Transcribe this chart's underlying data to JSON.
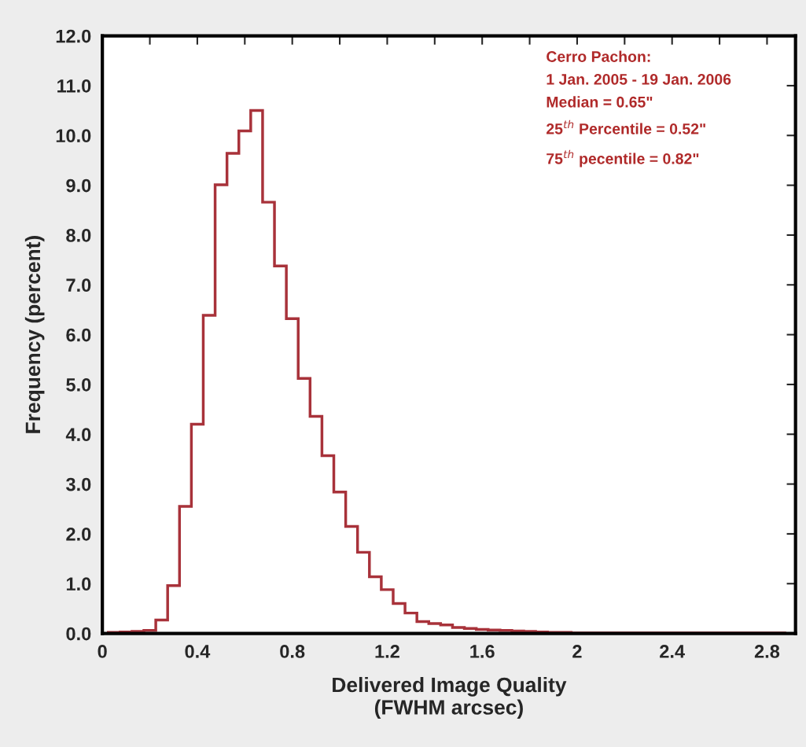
{
  "chart_data": {
    "type": "histogram",
    "xlabel": "Delivered Image Quality\n(FWHM arcsec)",
    "ylabel": "Frequency (percent)",
    "bins": [
      0.025,
      0.075,
      0.125,
      0.175,
      0.225,
      0.275,
      0.325,
      0.375,
      0.425,
      0.475,
      0.525,
      0.575,
      0.625,
      0.675,
      0.725,
      0.775,
      0.825,
      0.875,
      0.925,
      0.975,
      1.025,
      1.075,
      1.125,
      1.175,
      1.225,
      1.275,
      1.325,
      1.375,
      1.425,
      1.475,
      1.525,
      1.575,
      1.625,
      1.675,
      1.725,
      1.775,
      1.825,
      1.875,
      1.925,
      1.975,
      2.025,
      2.075,
      2.125,
      2.175,
      2.225,
      2.275,
      2.325,
      2.375,
      2.425,
      2.475,
      2.525,
      2.575,
      2.625,
      2.675,
      2.725,
      2.775,
      2.825,
      2.875
    ],
    "values": [
      0.02,
      0.03,
      0.04,
      0.06,
      0.27,
      0.96,
      2.55,
      4.2,
      6.39,
      9.01,
      9.64,
      10.09,
      10.5,
      8.66,
      7.38,
      6.32,
      5.12,
      4.36,
      3.57,
      2.84,
      2.15,
      1.63,
      1.14,
      0.88,
      0.6,
      0.41,
      0.24,
      0.2,
      0.17,
      0.12,
      0.1,
      0.08,
      0.07,
      0.06,
      0.05,
      0.04,
      0.03,
      0.02,
      0.02,
      0.01,
      0.01,
      0.01,
      0.01,
      0.01,
      0.01,
      0.01,
      0.01,
      0.01,
      0.01,
      0.01,
      0.01,
      0.01,
      0.01,
      0.01,
      0.01,
      0.01,
      0.01
    ],
    "color": "#a8323a",
    "xlim": [
      0,
      2.92
    ],
    "ylim": [
      0,
      12
    ],
    "xticks": [
      0,
      {
        "value": 0.2,
        "label": null
      },
      0.4,
      {
        "value": 0.6,
        "label": null
      },
      0.8,
      {
        "value": 1.0,
        "label": null
      },
      1.2,
      {
        "value": 1.4,
        "label": null
      },
      1.6,
      {
        "value": 1.8,
        "label": null
      },
      {
        "value": 2,
        "label": "2"
      },
      {
        "value": 2.2,
        "label": null
      },
      2.4,
      {
        "value": 2.6,
        "label": null
      },
      2.8
    ],
    "yticks": [
      {
        "value": 0,
        "label": "0.0"
      },
      {
        "value": 1,
        "label": "1.0"
      },
      {
        "value": 2,
        "label": "2.0"
      },
      {
        "value": 3,
        "label": "3.0"
      },
      {
        "value": 4,
        "label": "4.0"
      },
      {
        "value": 5,
        "label": "5.0"
      },
      {
        "value": 6,
        "label": "6.0"
      },
      {
        "value": 7,
        "label": "7.0"
      },
      {
        "value": 8,
        "label": "8.0"
      },
      {
        "value": 9,
        "label": "9.0"
      },
      {
        "value": 10,
        "label": "10.0"
      },
      {
        "value": 11,
        "label": "11.0"
      },
      {
        "value": 12,
        "label": "12.0"
      }
    ],
    "annotations": [
      "Cerro Pachon:",
      "1 Jan. 2005 - 19 Jan. 2006",
      "Median = 0.65\"",
      "25$^{th}$ Percentile = 0.52\"",
      "75$^{th}$ pecentile = 0.82\""
    ],
    "grid": false
  }
}
